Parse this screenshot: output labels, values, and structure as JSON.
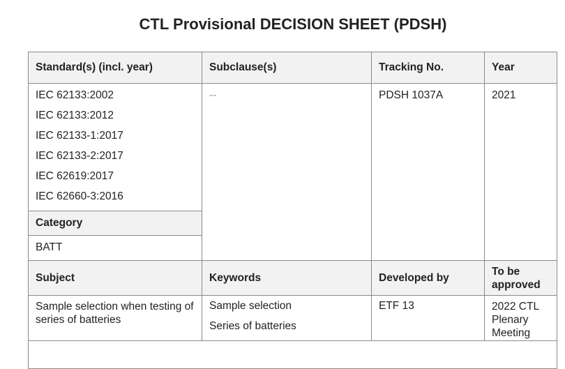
{
  "title": "CTL Provisional DECISION SHEET (PDSH)",
  "header1": {
    "standards": "Standard(s) (incl. year)",
    "subclauses": "Subclause(s)",
    "tracking": "Tracking No.",
    "year": "Year"
  },
  "row1": {
    "standards": [
      "IEC 62133:2002",
      "IEC 62133:2012",
      "IEC 62133-1:2017",
      "IEC 62133-2:2017",
      "IEC 62619:2017",
      "IEC 62660-3:2016"
    ],
    "subclauses": "--",
    "tracking": "PDSH 1037A",
    "year": "2021"
  },
  "category": {
    "label": "Category",
    "value": "BATT"
  },
  "header2": {
    "subject": "Subject",
    "keywords": "Keywords",
    "developed_by": "Developed by",
    "to_be_approved": "To be approved"
  },
  "row2": {
    "subject": "Sample selection when testing of series of batteries",
    "keywords": [
      "Sample selection",
      "Series of batteries"
    ],
    "developed_by": "ETF 13",
    "to_be_approved": "2022 CTL Plenary Meeting"
  }
}
